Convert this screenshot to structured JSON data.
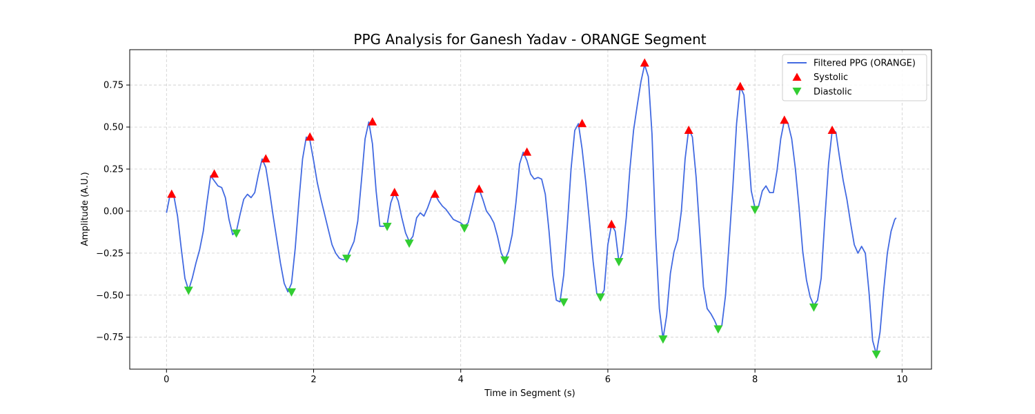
{
  "chart_data": {
    "type": "line",
    "title": "PPG Analysis for Ganesh Yadav - ORANGE Segment",
    "xlabel": "Time in Segment (s)",
    "ylabel": "Amplitude (A.U.)",
    "xlim": [
      -0.5,
      10.4
    ],
    "ylim": [
      -0.94,
      0.96
    ],
    "xticks": [
      0,
      2,
      4,
      6,
      8,
      10
    ],
    "xtick_labels": [
      "0",
      "2",
      "4",
      "6",
      "8",
      "10"
    ],
    "yticks": [
      -0.75,
      -0.5,
      -0.25,
      0.0,
      0.25,
      0.5,
      0.75
    ],
    "ytick_labels": [
      "−0.75",
      "−0.50",
      "−0.25",
      "0.00",
      "0.25",
      "0.50",
      "0.75"
    ],
    "grid": true,
    "legend_position": "top-right",
    "colors": {
      "line": "#4169e1",
      "systolic": "#ff0000",
      "diastolic": "#32cd32"
    },
    "series": [
      {
        "name": "Filtered PPG (ORANGE)",
        "type": "line",
        "x": [
          0.0,
          0.05,
          0.1,
          0.15,
          0.2,
          0.25,
          0.3,
          0.35,
          0.4,
          0.45,
          0.5,
          0.55,
          0.6,
          0.65,
          0.7,
          0.75,
          0.8,
          0.85,
          0.9,
          0.95,
          1.0,
          1.05,
          1.1,
          1.15,
          1.2,
          1.25,
          1.3,
          1.35,
          1.4,
          1.45,
          1.5,
          1.55,
          1.6,
          1.65,
          1.7,
          1.75,
          1.8,
          1.85,
          1.9,
          1.95,
          2.0,
          2.05,
          2.1,
          2.15,
          2.2,
          2.25,
          2.3,
          2.35,
          2.4,
          2.45,
          2.5,
          2.55,
          2.6,
          2.65,
          2.7,
          2.75,
          2.8,
          2.85,
          2.9,
          2.95,
          3.0,
          3.05,
          3.1,
          3.15,
          3.2,
          3.25,
          3.3,
          3.35,
          3.4,
          3.45,
          3.5,
          3.55,
          3.6,
          3.65,
          3.7,
          3.75,
          3.8,
          3.85,
          3.9,
          3.95,
          4.0,
          4.05,
          4.1,
          4.15,
          4.2,
          4.25,
          4.3,
          4.35,
          4.4,
          4.45,
          4.5,
          4.55,
          4.6,
          4.65,
          4.7,
          4.75,
          4.8,
          4.85,
          4.9,
          4.95,
          5.0,
          5.05,
          5.1,
          5.15,
          5.2,
          5.25,
          5.3,
          5.35,
          5.4,
          5.45,
          5.5,
          5.55,
          5.6,
          5.65,
          5.7,
          5.75,
          5.8,
          5.85,
          5.9,
          5.95,
          6.0,
          6.05,
          6.1,
          6.15,
          6.2,
          6.25,
          6.3,
          6.35,
          6.4,
          6.45,
          6.5,
          6.55,
          6.6,
          6.65,
          6.7,
          6.75,
          6.8,
          6.85,
          6.9,
          6.95,
          7.0,
          7.05,
          7.1,
          7.15,
          7.2,
          7.25,
          7.3,
          7.35,
          7.4,
          7.45,
          7.5,
          7.55,
          7.6,
          7.65,
          7.7,
          7.75,
          7.8,
          7.85,
          7.9,
          7.95,
          8.0,
          8.05,
          8.1,
          8.15,
          8.2,
          8.25,
          8.3,
          8.35,
          8.4,
          8.45,
          8.5,
          8.55,
          8.6,
          8.65,
          8.7,
          8.75,
          8.8,
          8.85,
          8.9,
          8.95,
          9.0,
          9.05,
          9.1,
          9.15,
          9.2,
          9.25,
          9.3,
          9.35,
          9.4,
          9.45,
          9.5,
          9.55,
          9.6,
          9.65,
          9.7,
          9.75,
          9.8,
          9.85,
          9.9,
          9.92
        ],
        "y": [
          -0.01,
          0.1,
          0.09,
          -0.03,
          -0.22,
          -0.4,
          -0.47,
          -0.4,
          -0.31,
          -0.23,
          -0.12,
          0.05,
          0.21,
          0.18,
          0.15,
          0.14,
          0.08,
          -0.05,
          -0.14,
          -0.12,
          -0.02,
          0.07,
          0.1,
          0.08,
          0.11,
          0.22,
          0.31,
          0.26,
          0.12,
          -0.03,
          -0.17,
          -0.31,
          -0.43,
          -0.48,
          -0.43,
          -0.22,
          0.06,
          0.31,
          0.44,
          0.42,
          0.3,
          0.17,
          0.07,
          -0.02,
          -0.11,
          -0.2,
          -0.25,
          -0.28,
          -0.29,
          -0.28,
          -0.23,
          -0.18,
          -0.06,
          0.18,
          0.43,
          0.53,
          0.4,
          0.12,
          -0.09,
          -0.09,
          -0.08,
          0.05,
          0.11,
          0.06,
          -0.04,
          -0.13,
          -0.18,
          -0.15,
          -0.04,
          -0.01,
          -0.03,
          0.02,
          0.08,
          0.1,
          0.06,
          0.03,
          0.01,
          -0.02,
          -0.05,
          -0.06,
          -0.07,
          -0.09,
          -0.07,
          0.02,
          0.11,
          0.13,
          0.07,
          0.0,
          -0.03,
          -0.07,
          -0.15,
          -0.25,
          -0.29,
          -0.24,
          -0.14,
          0.05,
          0.28,
          0.35,
          0.3,
          0.22,
          0.19,
          0.2,
          0.19,
          0.1,
          -0.12,
          -0.38,
          -0.53,
          -0.54,
          -0.38,
          -0.08,
          0.25,
          0.48,
          0.52,
          0.37,
          0.17,
          -0.06,
          -0.3,
          -0.49,
          -0.51,
          -0.47,
          -0.2,
          -0.08,
          -0.12,
          -0.3,
          -0.25,
          -0.04,
          0.25,
          0.48,
          0.63,
          0.77,
          0.87,
          0.8,
          0.46,
          -0.14,
          -0.58,
          -0.76,
          -0.62,
          -0.37,
          -0.24,
          -0.17,
          0.0,
          0.31,
          0.49,
          0.44,
          0.2,
          -0.13,
          -0.45,
          -0.58,
          -0.61,
          -0.65,
          -0.7,
          -0.68,
          -0.5,
          -0.18,
          0.15,
          0.52,
          0.74,
          0.69,
          0.42,
          0.12,
          0.02,
          0.03,
          0.12,
          0.15,
          0.11,
          0.11,
          0.24,
          0.43,
          0.54,
          0.52,
          0.43,
          0.25,
          0.02,
          -0.24,
          -0.41,
          -0.51,
          -0.56,
          -0.53,
          -0.4,
          -0.05,
          0.28,
          0.48,
          0.47,
          0.32,
          0.18,
          0.07,
          -0.07,
          -0.2,
          -0.25,
          -0.21,
          -0.25,
          -0.48,
          -0.77,
          -0.85,
          -0.72,
          -0.47,
          -0.25,
          -0.12,
          -0.05,
          -0.04
        ]
      },
      {
        "name": "Systolic",
        "type": "scatter",
        "marker": "triangle-up",
        "x": [
          0.07,
          0.65,
          1.35,
          1.95,
          2.8,
          3.1,
          3.65,
          4.25,
          4.9,
          5.65,
          6.05,
          6.5,
          7.1,
          7.8,
          8.4,
          9.05
        ],
        "y": [
          0.1,
          0.22,
          0.31,
          0.44,
          0.53,
          0.11,
          0.1,
          0.13,
          0.35,
          0.52,
          -0.08,
          0.88,
          0.48,
          0.74,
          0.54,
          0.48
        ]
      },
      {
        "name": "Diastolic",
        "type": "scatter",
        "marker": "triangle-down",
        "x": [
          0.3,
          0.95,
          1.7,
          2.45,
          3.0,
          3.3,
          4.05,
          4.6,
          5.4,
          5.9,
          6.15,
          6.75,
          7.5,
          8.0,
          8.8,
          9.65
        ],
        "y": [
          -0.47,
          -0.13,
          -0.48,
          -0.28,
          -0.09,
          -0.19,
          -0.1,
          -0.29,
          -0.54,
          -0.51,
          -0.3,
          -0.76,
          -0.7,
          0.01,
          -0.57,
          -0.85
        ]
      }
    ]
  }
}
